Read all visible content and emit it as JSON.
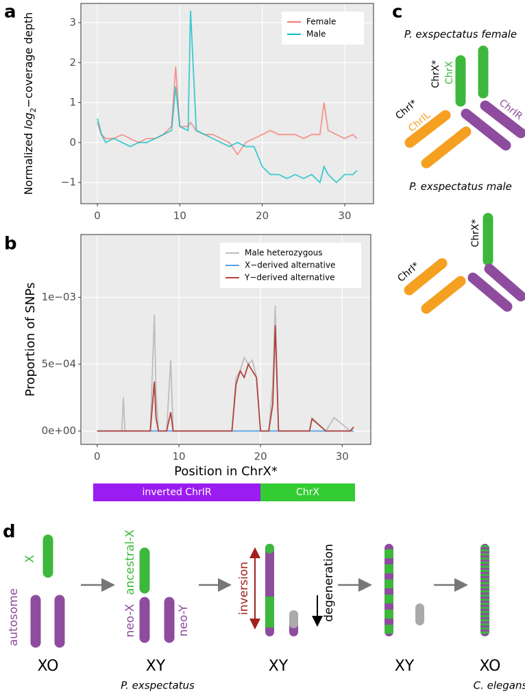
{
  "chart_data": [
    {
      "type": "line",
      "panel_label": "a",
      "ylabel": [
        "Normalized ",
        "log",
        "2",
        "−coverage depth"
      ],
      "x": [
        0,
        0.5,
        1,
        2,
        3,
        4,
        5,
        6,
        7,
        8,
        9,
        9.5,
        10,
        11,
        11.3,
        12,
        13,
        14,
        15,
        16,
        17,
        18,
        19,
        20,
        21,
        22,
        23,
        24,
        25,
        26,
        27,
        27.5,
        28,
        29,
        30,
        31,
        31.5
      ],
      "series": [
        {
          "name": "Female",
          "color": "#f8766d",
          "values": [
            0.5,
            0.2,
            0.1,
            0.1,
            0.2,
            0.1,
            0.0,
            0.1,
            0.1,
            0.2,
            0.4,
            1.9,
            0.4,
            0.4,
            0.5,
            0.3,
            0.2,
            0.2,
            0.1,
            0.0,
            -0.3,
            0.0,
            0.1,
            0.2,
            0.3,
            0.2,
            0.2,
            0.2,
            0.1,
            0.2,
            0.2,
            1.0,
            0.3,
            0.2,
            0.1,
            0.2,
            0.1
          ]
        },
        {
          "name": "Male",
          "color": "#00bfc4",
          "values": [
            0.6,
            0.2,
            0.0,
            0.1,
            0.0,
            -0.1,
            0.0,
            0.0,
            0.1,
            0.2,
            0.3,
            1.4,
            0.4,
            0.3,
            3.3,
            0.3,
            0.2,
            0.1,
            0.0,
            -0.1,
            0.0,
            -0.1,
            -0.1,
            -0.6,
            -0.8,
            -0.8,
            -0.9,
            -0.8,
            -0.9,
            -0.8,
            -1.0,
            -0.6,
            -0.8,
            -1.0,
            -0.8,
            -0.8,
            -0.7
          ]
        }
      ],
      "xlim": [
        -2,
        33.5
      ],
      "xticks": [
        0,
        10,
        20,
        30
      ],
      "ylim": [
        -1.53,
        3.48
      ],
      "yticks": [
        {
          "value": -1,
          "label": "−1"
        },
        0,
        1,
        2,
        3
      ],
      "grid": true,
      "legend": "top-right"
    },
    {
      "type": "line",
      "panel_label": "b",
      "xlabel": "Position in ChrX*",
      "ylabel": "Proportion of SNPs",
      "x": [
        0,
        3,
        3.2,
        3.4,
        6.5,
        7,
        7.2,
        7.5,
        8.5,
        9,
        9.3,
        10,
        15,
        16.5,
        17,
        17.5,
        18,
        18.5,
        19,
        19.5,
        20,
        21,
        21.5,
        21.8,
        22.2,
        23,
        26,
        26.3,
        28,
        29,
        31,
        31.4
      ],
      "series": [
        {
          "name": "Male heterozygous",
          "color": "#bdbdbd",
          "values": [
            0,
            0,
            0.00025,
            0,
            0,
            0.00087,
            0.0003,
            0,
            0,
            0.00053,
            0,
            0,
            0,
            0,
            0.0004,
            0.00045,
            0.00055,
            0.0005,
            0.00053,
            0.0004,
            0,
            0,
            0.00035,
            0.00094,
            0,
            0,
            0,
            0.0001,
            0,
            0.0001,
            0,
            3e-05
          ]
        },
        {
          "name": "X−derived alternative",
          "color": "#56a0e8",
          "values": [
            0,
            0,
            0,
            0,
            0,
            0,
            0,
            0,
            0,
            0,
            0,
            0,
            0,
            0,
            0,
            0,
            0,
            0,
            0,
            0,
            0,
            0,
            0,
            0,
            0,
            0,
            0,
            0,
            0,
            0,
            0,
            0
          ]
        },
        {
          "name": "Y−derived alternative",
          "color": "#b2413a",
          "values": [
            0,
            0,
            0,
            0,
            0,
            0.00037,
            0.0001,
            0,
            0,
            0.00014,
            0,
            0,
            0,
            0,
            0.00035,
            0.00045,
            0.0004,
            0.0005,
            0.00045,
            0.0004,
            0,
            0,
            0.0002,
            0.00079,
            0,
            0,
            0,
            9e-05,
            0,
            0,
            0,
            3e-05
          ]
        }
      ],
      "xlim": [
        -2,
        33.5
      ],
      "xticks": [
        0,
        10,
        20,
        30
      ],
      "ylim": [
        -0.0001,
        0.00147
      ],
      "yticks": [
        {
          "value": 0,
          "label": "0e+00"
        },
        {
          "value": 0.0005,
          "label": "5e−04"
        },
        {
          "value": 0.001,
          "label": "1e−03"
        }
      ],
      "grid": true,
      "legend": "top-right"
    }
  ],
  "track": {
    "segments": [
      "inverted ChrIR",
      "ChrX"
    ]
  },
  "panel_c": {
    "label": "c",
    "female_title": "P. exspectatus female",
    "female_chrx_star": "ChrX*",
    "female_chrx": "ChrX",
    "female_chri_star": "ChrI*",
    "female_chril": "ChrIL",
    "female_chrir": "ChrIR",
    "male_title": "P. exspectatus male",
    "male_chrx_star": "ChrX*",
    "male_chri_star": "ChrI*"
  },
  "panel_d": {
    "label": "d",
    "x": "X",
    "autosome": "autosome",
    "ancestral_x": "ancestral-X",
    "neo_x": "neo-X",
    "neo_y": "neo-Y",
    "inversion": "inversion",
    "degeneration": "degeneration",
    "karyotypes": [
      "XO",
      "XY",
      "XY",
      "XY",
      "XO"
    ],
    "species_1": "P. exspectatus",
    "species_2": "C. elegans"
  }
}
